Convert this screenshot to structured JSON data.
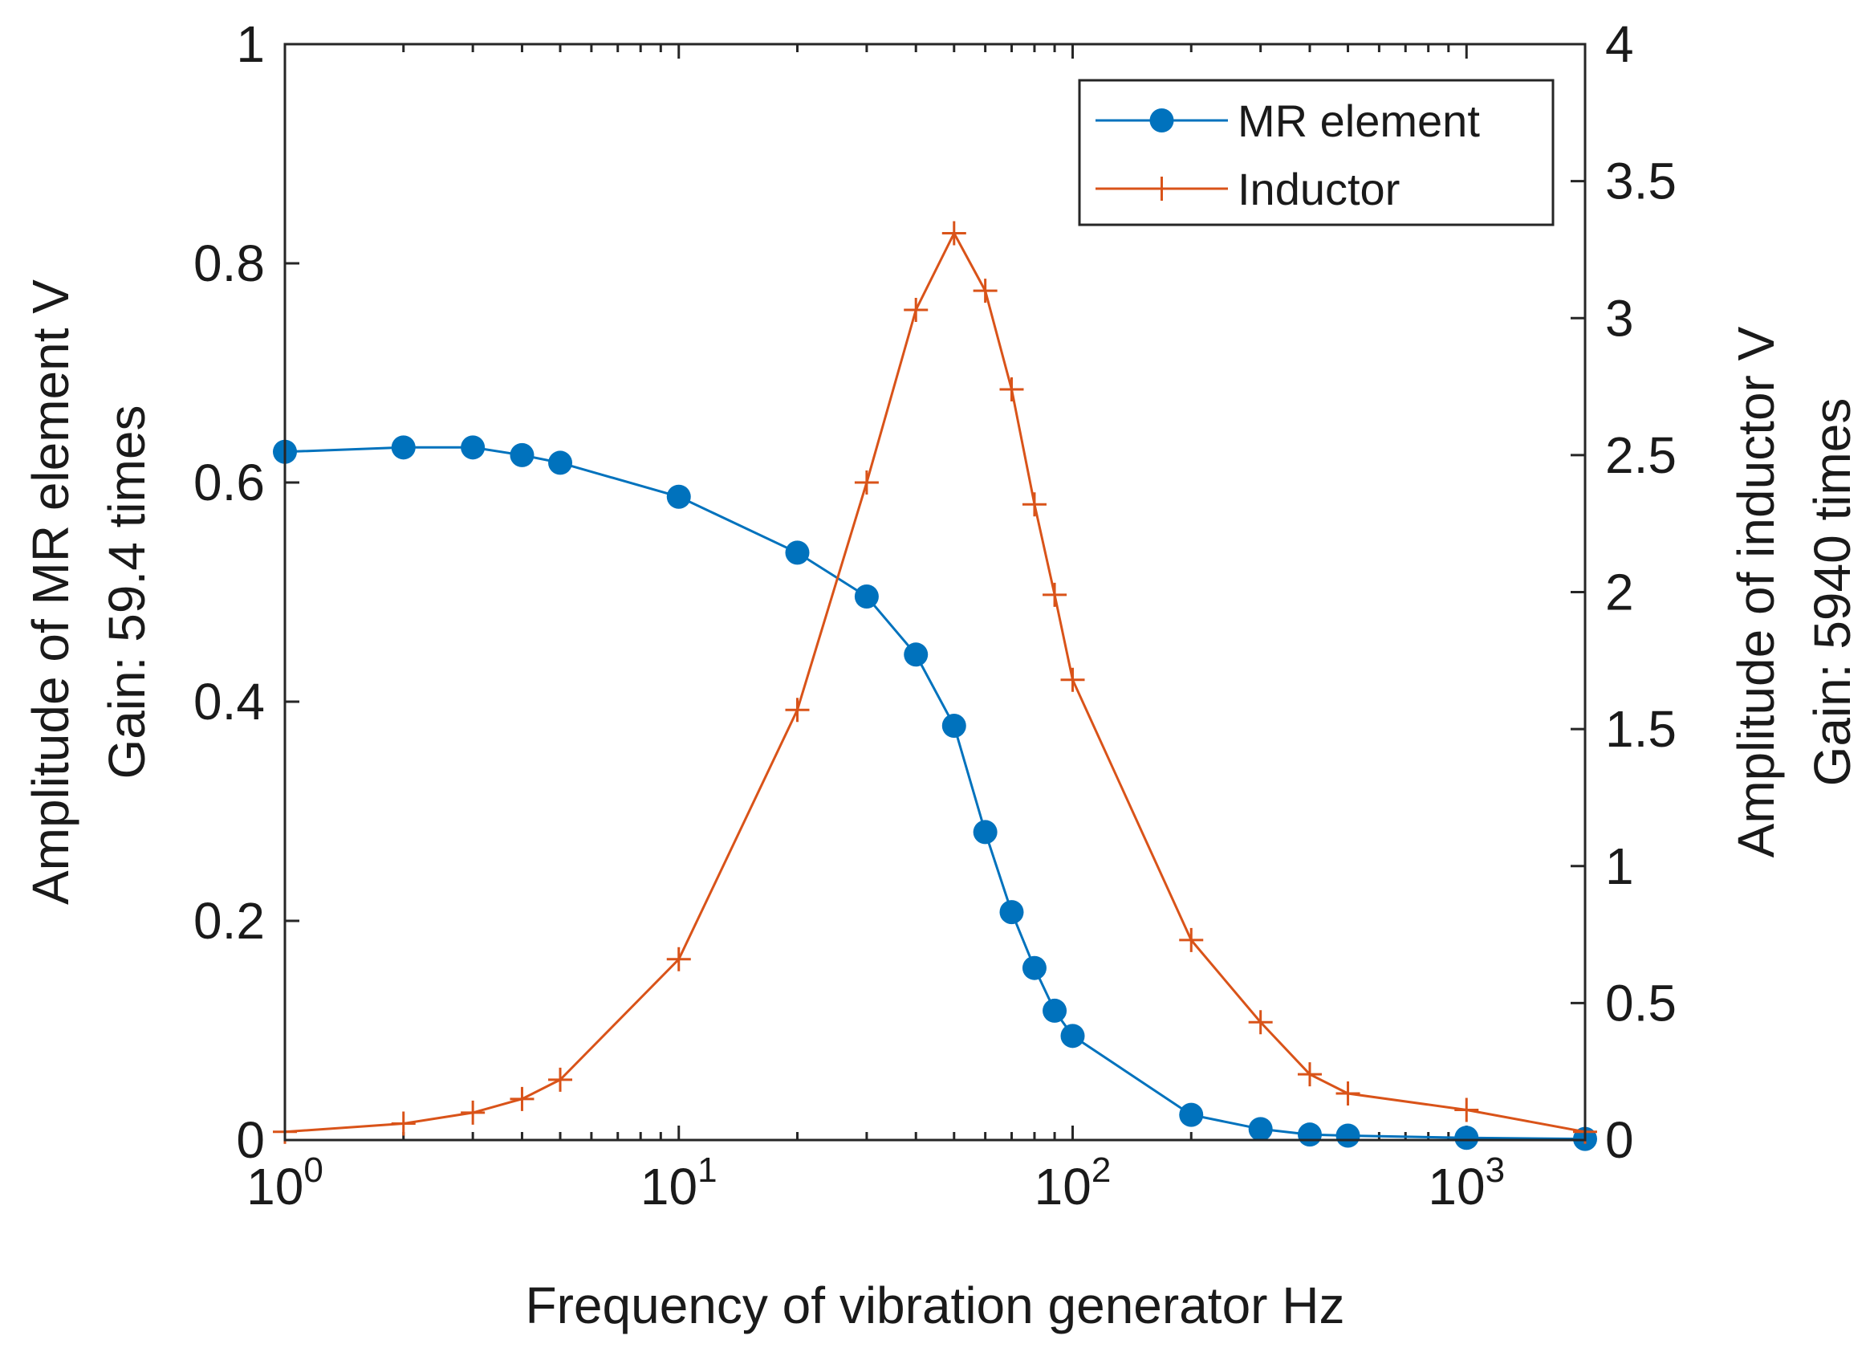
{
  "chart_data": {
    "type": "line",
    "xscale": "log",
    "xlabel": "Frequency of vibration generator  Hz",
    "ylabel_left": [
      "Amplitude of MR element  V",
      "Gain: 59.4 times"
    ],
    "ylabel_right": [
      "Amplitude of inductor  V",
      "Gain: 5940 times"
    ],
    "xlim": [
      1,
      2000
    ],
    "ylim_left": [
      0,
      1
    ],
    "ylim_right": [
      0,
      4
    ],
    "x_ticks": [
      {
        "value": 1,
        "base": "10",
        "exp": "0"
      },
      {
        "value": 10,
        "base": "10",
        "exp": "1"
      },
      {
        "value": 100,
        "base": "10",
        "exp": "2"
      },
      {
        "value": 1000,
        "base": "10",
        "exp": "3"
      }
    ],
    "y_left_ticks": [
      {
        "value": 0,
        "label": "0"
      },
      {
        "value": 0.2,
        "label": "0.2"
      },
      {
        "value": 0.4,
        "label": "0.4"
      },
      {
        "value": 0.6,
        "label": "0.6"
      },
      {
        "value": 0.8,
        "label": "0.8"
      },
      {
        "value": 1,
        "label": "1"
      }
    ],
    "y_right_ticks": [
      {
        "value": 0,
        "label": "0"
      },
      {
        "value": 0.5,
        "label": "0.5"
      },
      {
        "value": 1,
        "label": "1"
      },
      {
        "value": 1.5,
        "label": "1.5"
      },
      {
        "value": 2,
        "label": "2"
      },
      {
        "value": 2.5,
        "label": "2.5"
      },
      {
        "value": 3,
        "label": "3"
      },
      {
        "value": 3.5,
        "label": "3.5"
      },
      {
        "value": 4,
        "label": "4"
      }
    ],
    "legend_position": "top-right",
    "series": [
      {
        "name": "MR element",
        "axis": "left",
        "color": "#0072BD",
        "marker": "circle",
        "x": [
          1,
          2,
          3,
          4,
          5,
          10,
          20,
          30,
          40,
          50,
          60,
          70,
          80,
          90,
          100,
          200,
          300,
          400,
          500,
          1000,
          2000
        ],
        "y": [
          0.628,
          0.632,
          0.632,
          0.625,
          0.618,
          0.587,
          0.536,
          0.496,
          0.443,
          0.378,
          0.281,
          0.208,
          0.157,
          0.118,
          0.095,
          0.023,
          0.01,
          0.005,
          0.004,
          0.002,
          0.001
        ]
      },
      {
        "name": "Inductor",
        "axis": "right",
        "color": "#D95319",
        "marker": "plus",
        "x": [
          1,
          2,
          3,
          4,
          5,
          10,
          20,
          30,
          40,
          50,
          60,
          70,
          80,
          90,
          100,
          200,
          300,
          400,
          500,
          1000,
          2000
        ],
        "y": [
          0.03,
          0.06,
          0.1,
          0.15,
          0.22,
          0.66,
          1.57,
          2.4,
          3.03,
          3.31,
          3.1,
          2.74,
          2.32,
          1.99,
          1.68,
          0.73,
          0.43,
          0.24,
          0.17,
          0.11,
          0.03
        ]
      }
    ]
  }
}
